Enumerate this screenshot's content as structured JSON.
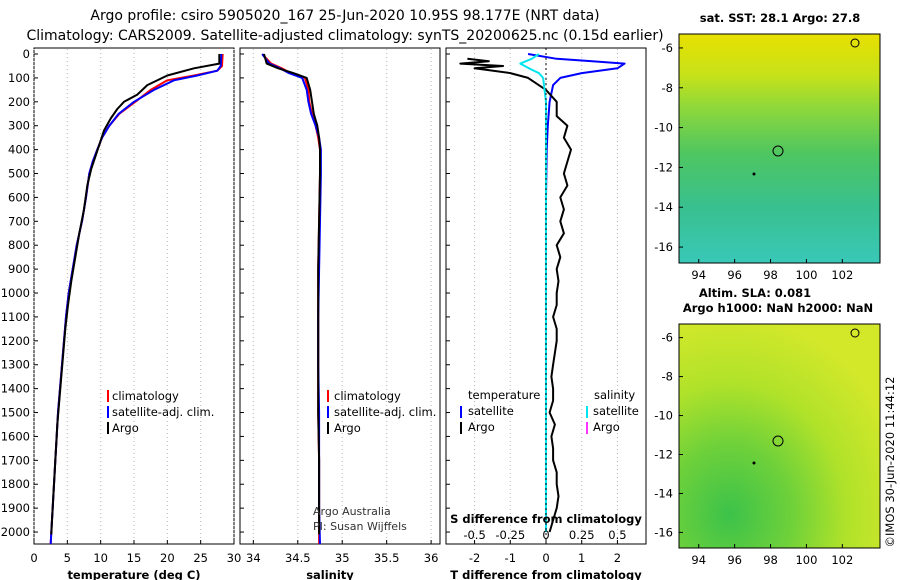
{
  "titles": {
    "line1": "Argo profile: csiro 5905020_167 25-Jun-2020 10.95S 98.177E (NRT data)",
    "line2": "Climatology: CARS2009. Satellite-adjusted climatology: synTS_20200625.nc (0.15d earlier)"
  },
  "side_stamp": "©IMOS 30-Jun-2020 11:44:12",
  "depth_ticks": [
    0,
    100,
    200,
    300,
    400,
    500,
    600,
    700,
    800,
    900,
    1000,
    1100,
    1200,
    1300,
    1400,
    1500,
    1600,
    1700,
    1800,
    1900,
    2000
  ],
  "colors": {
    "climatology": "#ff0000",
    "satellite_adj": "#0000ff",
    "argo": "#000000",
    "s_satellite": "#00e5ee",
    "s_argo": "#ff33ff"
  },
  "panels": {
    "temperature": {
      "xlabel": "temperature (deg C)",
      "xticks": [
        "0",
        "5",
        "10",
        "15",
        "20",
        "25",
        "30"
      ],
      "legend": [
        "climatology",
        "satellite-adj. clim.",
        "Argo"
      ]
    },
    "salinity": {
      "xlabel": "salinity",
      "xticks": [
        "34",
        "34.5",
        "35",
        "35.5",
        "36"
      ],
      "legend": [
        "climatology",
        "satellite-adj. clim.",
        "Argo"
      ],
      "notes": [
        "Argo Australia",
        "PI: Susan Wijffels"
      ]
    },
    "difference": {
      "xlabel": "T difference from climatology",
      "secondary_label": "S difference from climatology",
      "xticks": [
        "-2",
        "-1",
        "0",
        "1",
        "2"
      ],
      "sticks": [
        "-0.5",
        "-0.25",
        "0",
        "0.25",
        "0.5"
      ],
      "legend_left_head": "temperature",
      "legend_right_head": "salinity",
      "legend_left": [
        "satellite",
        "Argo"
      ],
      "legend_right": [
        "satellite",
        "Argo"
      ]
    }
  },
  "maps": {
    "top": {
      "title": "sat. SST: 28.1 Argo: 27.8",
      "yticks": [
        "-6",
        "-8",
        "-10",
        "-12",
        "-14",
        "-16"
      ],
      "xticks": [
        "94",
        "96",
        "98",
        "100",
        "102"
      ]
    },
    "bottom": {
      "title1": "Altim. SLA: 0.081",
      "title2": "Argo h1000: NaN h2000: NaN",
      "yticks": [
        "-6",
        "-8",
        "-10",
        "-12",
        "-14",
        "-16"
      ],
      "xticks": [
        "94",
        "96",
        "98",
        "100",
        "102"
      ]
    }
  },
  "chart_data": [
    {
      "type": "line",
      "title": "",
      "xlabel": "temperature (deg C)",
      "ylabel": "",
      "xlim": [
        0,
        30
      ],
      "ylim": [
        2050,
        0
      ],
      "series": [
        {
          "name": "climatology",
          "points": [
            [
              28.3,
              0
            ],
            [
              28.2,
              50
            ],
            [
              27.5,
              70
            ],
            [
              24,
              90
            ],
            [
              20,
              110
            ],
            [
              17.5,
              150
            ],
            [
              15.2,
              200
            ],
            [
              12.8,
              250
            ],
            [
              11.3,
              300
            ],
            [
              10.2,
              350
            ],
            [
              9.5,
              400
            ],
            [
              8.8,
              450
            ],
            [
              8.3,
              500
            ],
            [
              7.8,
              600
            ],
            [
              7.2,
              700
            ],
            [
              6.4,
              800
            ],
            [
              5.8,
              900
            ],
            [
              5.2,
              1000
            ],
            [
              4.8,
              1100
            ],
            [
              4.5,
              1200
            ],
            [
              4.2,
              1300
            ],
            [
              3.9,
              1400
            ],
            [
              3.6,
              1500
            ],
            [
              3.4,
              1600
            ],
            [
              3.2,
              1700
            ],
            [
              3.0,
              1800
            ],
            [
              2.8,
              1900
            ],
            [
              2.6,
              2000
            ],
            [
              2.5,
              2050
            ]
          ]
        },
        {
          "name": "satellite-adj. clim.",
          "points": [
            [
              28.1,
              0
            ],
            [
              28.0,
              50
            ],
            [
              27.5,
              70
            ],
            [
              24.5,
              90
            ],
            [
              21,
              110
            ],
            [
              18,
              150
            ],
            [
              15,
              200
            ],
            [
              12.7,
              250
            ],
            [
              11.3,
              300
            ],
            [
              10.2,
              350
            ],
            [
              9.5,
              400
            ],
            [
              8.8,
              450
            ],
            [
              8.3,
              500
            ],
            [
              7.8,
              600
            ],
            [
              7.2,
              700
            ],
            [
              6.4,
              800
            ],
            [
              5.8,
              900
            ],
            [
              5.2,
              1000
            ],
            [
              4.8,
              1100
            ],
            [
              4.5,
              1200
            ],
            [
              4.2,
              1300
            ],
            [
              3.9,
              1400
            ],
            [
              3.6,
              1500
            ],
            [
              3.4,
              1600
            ],
            [
              3.2,
              1700
            ],
            [
              3.0,
              1800
            ],
            [
              2.8,
              1900
            ],
            [
              2.6,
              2000
            ],
            [
              2.5,
              2050
            ]
          ]
        },
        {
          "name": "Argo",
          "points": [
            [
              27.8,
              0
            ],
            [
              27.8,
              40
            ],
            [
              24,
              60
            ],
            [
              20,
              90
            ],
            [
              17,
              130
            ],
            [
              15.5,
              170
            ],
            [
              13.5,
              200
            ],
            [
              12.5,
              230
            ],
            [
              11.5,
              270
            ],
            [
              10.5,
              320
            ],
            [
              9.8,
              380
            ],
            [
              9.2,
              430
            ],
            [
              8.6,
              480
            ],
            [
              8.0,
              550
            ],
            [
              7.5,
              650
            ],
            [
              6.8,
              750
            ],
            [
              6.2,
              850
            ],
            [
              5.6,
              950
            ],
            [
              5.1,
              1050
            ],
            [
              4.7,
              1150
            ],
            [
              4.4,
              1250
            ],
            [
              4.1,
              1350
            ],
            [
              3.8,
              1450
            ],
            [
              3.5,
              1550
            ],
            [
              3.3,
              1650
            ],
            [
              3.1,
              1750
            ],
            [
              2.9,
              1850
            ],
            [
              2.7,
              1950
            ],
            [
              2.6,
              2010
            ]
          ]
        }
      ]
    },
    {
      "type": "line",
      "title": "",
      "xlabel": "salinity",
      "ylabel": "",
      "xlim": [
        33.85,
        36.1
      ],
      "ylim": [
        2050,
        0
      ],
      "series": [
        {
          "name": "climatology",
          "points": [
            [
              34.1,
              0
            ],
            [
              34.2,
              40
            ],
            [
              34.32,
              60
            ],
            [
              34.42,
              80
            ],
            [
              34.58,
              100
            ],
            [
              34.62,
              150
            ],
            [
              34.63,
              200
            ],
            [
              34.66,
              250
            ],
            [
              34.7,
              300
            ],
            [
              34.73,
              350
            ],
            [
              34.75,
              400
            ],
            [
              34.75,
              500
            ],
            [
              34.74,
              700
            ],
            [
              34.73,
              900
            ],
            [
              34.73,
              1100
            ],
            [
              34.73,
              1300
            ],
            [
              34.73,
              1500
            ],
            [
              34.74,
              1700
            ],
            [
              34.74,
              1900
            ],
            [
              34.74,
              2050
            ]
          ]
        },
        {
          "name": "satellite-adj. clim.",
          "points": [
            [
              34.1,
              0
            ],
            [
              34.18,
              40
            ],
            [
              34.3,
              60
            ],
            [
              34.4,
              80
            ],
            [
              34.55,
              100
            ],
            [
              34.6,
              150
            ],
            [
              34.62,
              200
            ],
            [
              34.65,
              250
            ],
            [
              34.7,
              300
            ],
            [
              34.74,
              350
            ],
            [
              34.76,
              400
            ],
            [
              34.76,
              500
            ],
            [
              34.75,
              700
            ],
            [
              34.74,
              900
            ],
            [
              34.73,
              1100
            ],
            [
              34.73,
              1300
            ],
            [
              34.74,
              1500
            ],
            [
              34.74,
              1700
            ],
            [
              34.74,
              1900
            ],
            [
              34.75,
              2050
            ]
          ]
        },
        {
          "name": "Argo",
          "points": [
            [
              34.12,
              0
            ],
            [
              34.15,
              40
            ],
            [
              34.28,
              60
            ],
            [
              34.45,
              80
            ],
            [
              34.6,
              100
            ],
            [
              34.64,
              150
            ],
            [
              34.66,
              200
            ],
            [
              34.68,
              250
            ],
            [
              34.72,
              300
            ],
            [
              34.74,
              350
            ],
            [
              34.75,
              400
            ],
            [
              34.75,
              500
            ],
            [
              34.74,
              700
            ],
            [
              34.73,
              900
            ],
            [
              34.73,
              1100
            ],
            [
              34.73,
              1300
            ],
            [
              34.73,
              1500
            ],
            [
              34.74,
              1700
            ],
            [
              34.74,
              1900
            ],
            [
              34.74,
              2010
            ]
          ]
        }
      ]
    },
    {
      "type": "line",
      "title": "",
      "xlabel": "T difference from climatology",
      "ylabel": "",
      "xlim": [
        -2.8,
        2.8
      ],
      "ylim": [
        2050,
        0
      ],
      "series": [
        {
          "name": "temperature satellite",
          "points": [
            [
              -0.5,
              0
            ],
            [
              0.3,
              20
            ],
            [
              1.3,
              30
            ],
            [
              2.2,
              40
            ],
            [
              2.0,
              60
            ],
            [
              1.0,
              80
            ],
            [
              0.4,
              100
            ],
            [
              0.2,
              130
            ],
            [
              0.1,
              200
            ],
            [
              0.05,
              300
            ],
            [
              0.02,
              400
            ],
            [
              0,
              600
            ],
            [
              0,
              800
            ],
            [
              0,
              1000
            ],
            [
              0,
              1200
            ],
            [
              0,
              1400
            ],
            [
              0,
              1600
            ],
            [
              0,
              1800
            ],
            [
              0,
              2000
            ]
          ]
        },
        {
          "name": "temperature Argo",
          "points": [
            [
              -2.2,
              20
            ],
            [
              -1.6,
              30
            ],
            [
              -2.4,
              40
            ],
            [
              -1.2,
              50
            ],
            [
              -2.0,
              60
            ],
            [
              -1.0,
              80
            ],
            [
              -0.5,
              100
            ],
            [
              0,
              150
            ],
            [
              0.3,
              200
            ],
            [
              0.3,
              260
            ],
            [
              0.6,
              300
            ],
            [
              0.5,
              350
            ],
            [
              0.7,
              400
            ],
            [
              0.6,
              450
            ],
            [
              0.5,
              500
            ],
            [
              0.6,
              550
            ],
            [
              0.4,
              600
            ],
            [
              0.5,
              650
            ],
            [
              0.4,
              700
            ],
            [
              0.5,
              750
            ],
            [
              0.3,
              800
            ],
            [
              0.4,
              850
            ],
            [
              0.3,
              900
            ],
            [
              0.35,
              950
            ],
            [
              0.3,
              1000
            ],
            [
              0.3,
              1050
            ],
            [
              0.2,
              1100
            ],
            [
              0.3,
              1150
            ],
            [
              0.3,
              1200
            ],
            [
              0.25,
              1250
            ],
            [
              0.2,
              1300
            ],
            [
              0.15,
              1350
            ],
            [
              0.2,
              1400
            ],
            [
              0.2,
              1450
            ],
            [
              0.1,
              1500
            ],
            [
              0.25,
              1550
            ],
            [
              0.15,
              1600
            ],
            [
              0.2,
              1650
            ],
            [
              0.2,
              1700
            ],
            [
              0.3,
              1750
            ],
            [
              0.3,
              1800
            ],
            [
              0.35,
              1850
            ],
            [
              0.3,
              1900
            ],
            [
              0.2,
              1950
            ],
            [
              0.1,
              2000
            ]
          ]
        },
        {
          "name": "salinity satellite",
          "points": [
            [
              -0.05,
              0
            ],
            [
              -0.1,
              20
            ],
            [
              -0.18,
              40
            ],
            [
              -0.12,
              60
            ],
            [
              -0.05,
              80
            ],
            [
              -0.02,
              100
            ],
            [
              0,
              200
            ],
            [
              0,
              300
            ],
            [
              0,
              400
            ],
            [
              0,
              600
            ],
            [
              0,
              800
            ],
            [
              0,
              1000
            ],
            [
              0,
              1200
            ],
            [
              0,
              1400
            ],
            [
              0,
              1600
            ],
            [
              0,
              1800
            ],
            [
              0,
              2000
            ]
          ]
        }
      ]
    }
  ]
}
